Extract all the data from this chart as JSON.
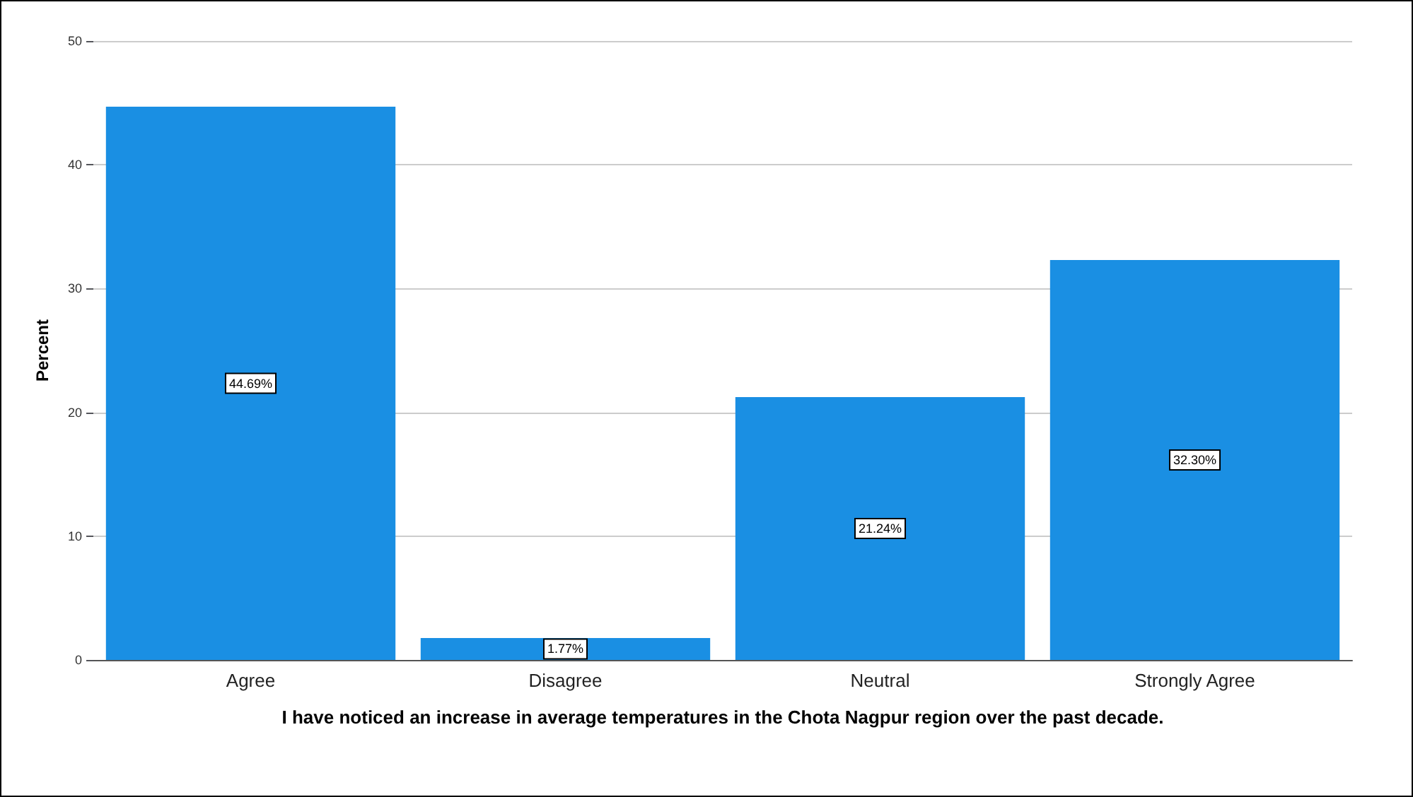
{
  "chart_data": {
    "type": "bar",
    "xlabel": "I have noticed an increase in average temperatures in the Chota Nagpur region over the past decade.",
    "ylabel": "Percent",
    "categories": [
      "Agree",
      "Disagree",
      "Neutral",
      "Strongly Agree"
    ],
    "values": [
      44.69,
      1.77,
      21.24,
      32.3
    ],
    "value_labels": [
      "44.69%",
      "1.77%",
      "21.24%",
      "32.30%"
    ],
    "color": "#1a8fe3",
    "ylim": [
      0,
      50
    ],
    "yticks": [
      0,
      10,
      20,
      30,
      40,
      50
    ],
    "grid": "y"
  }
}
